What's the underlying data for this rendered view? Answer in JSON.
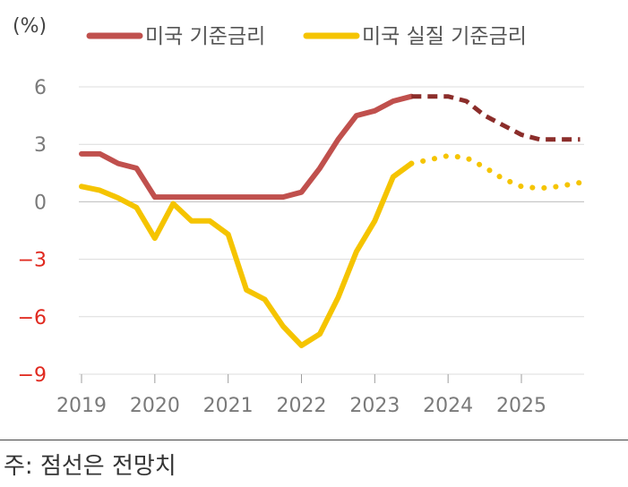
{
  "chart_data": {
    "type": "line",
    "unit_label": "(%)",
    "ylim": [
      -9,
      6
    ],
    "yticks": [
      6,
      3,
      0,
      -3,
      -6,
      -9
    ],
    "ytick_labels": [
      "6",
      "3",
      "0",
      "−3",
      "−6",
      "−9"
    ],
    "xlim": [
      2019,
      2025.8
    ],
    "xticks": [
      2019,
      2020,
      2021,
      2022,
      2023,
      2024,
      2025
    ],
    "xtick_labels": [
      "2019",
      "2020",
      "2021",
      "2022",
      "2023",
      "2024",
      "2025"
    ],
    "grid": "horizontal",
    "legend_position": "top",
    "colors": {
      "policy": "#c0504d",
      "policy_forecast": "#8b2d2a",
      "real": "#f5c400",
      "negative_tick": "#e0291f"
    },
    "series": [
      {
        "name": "미국 기준금리",
        "actual": [
          [
            2019.0,
            2.5
          ],
          [
            2019.25,
            2.5
          ],
          [
            2019.5,
            2.0
          ],
          [
            2019.75,
            1.75
          ],
          [
            2020.0,
            0.25
          ],
          [
            2020.25,
            0.25
          ],
          [
            2020.5,
            0.25
          ],
          [
            2020.75,
            0.25
          ],
          [
            2021.0,
            0.25
          ],
          [
            2021.25,
            0.25
          ],
          [
            2021.5,
            0.25
          ],
          [
            2021.75,
            0.25
          ],
          [
            2022.0,
            0.5
          ],
          [
            2022.25,
            1.75
          ],
          [
            2022.5,
            3.25
          ],
          [
            2022.75,
            4.5
          ],
          [
            2023.0,
            4.75
          ],
          [
            2023.25,
            5.25
          ],
          [
            2023.5,
            5.5
          ]
        ],
        "forecast": [
          [
            2023.5,
            5.5
          ],
          [
            2023.75,
            5.5
          ],
          [
            2024.0,
            5.5
          ],
          [
            2024.25,
            5.25
          ],
          [
            2024.5,
            4.5
          ],
          [
            2024.75,
            4.0
          ],
          [
            2025.0,
            3.5
          ],
          [
            2025.25,
            3.25
          ],
          [
            2025.5,
            3.25
          ],
          [
            2025.8,
            3.25
          ]
        ]
      },
      {
        "name": "미국 실질 기준금리",
        "actual": [
          [
            2019.0,
            0.8
          ],
          [
            2019.25,
            0.6
          ],
          [
            2019.5,
            0.2
          ],
          [
            2019.75,
            -0.3
          ],
          [
            2020.0,
            -1.9
          ],
          [
            2020.25,
            -0.1
          ],
          [
            2020.5,
            -1.0
          ],
          [
            2020.75,
            -1.0
          ],
          [
            2021.0,
            -1.7
          ],
          [
            2021.25,
            -4.6
          ],
          [
            2021.5,
            -5.1
          ],
          [
            2021.75,
            -6.5
          ],
          [
            2022.0,
            -7.5
          ],
          [
            2022.25,
            -6.9
          ],
          [
            2022.5,
            -5.0
          ],
          [
            2022.75,
            -2.6
          ],
          [
            2023.0,
            -1.0
          ],
          [
            2023.25,
            1.3
          ],
          [
            2023.5,
            2.0
          ]
        ],
        "forecast": [
          [
            2023.5,
            2.0
          ],
          [
            2023.75,
            2.2
          ],
          [
            2024.0,
            2.4
          ],
          [
            2024.25,
            2.3
          ],
          [
            2024.5,
            1.8
          ],
          [
            2024.75,
            1.2
          ],
          [
            2025.0,
            0.8
          ],
          [
            2025.25,
            0.7
          ],
          [
            2025.5,
            0.8
          ],
          [
            2025.8,
            1.0
          ]
        ]
      }
    ]
  },
  "note": "주: 점선은 전망치"
}
